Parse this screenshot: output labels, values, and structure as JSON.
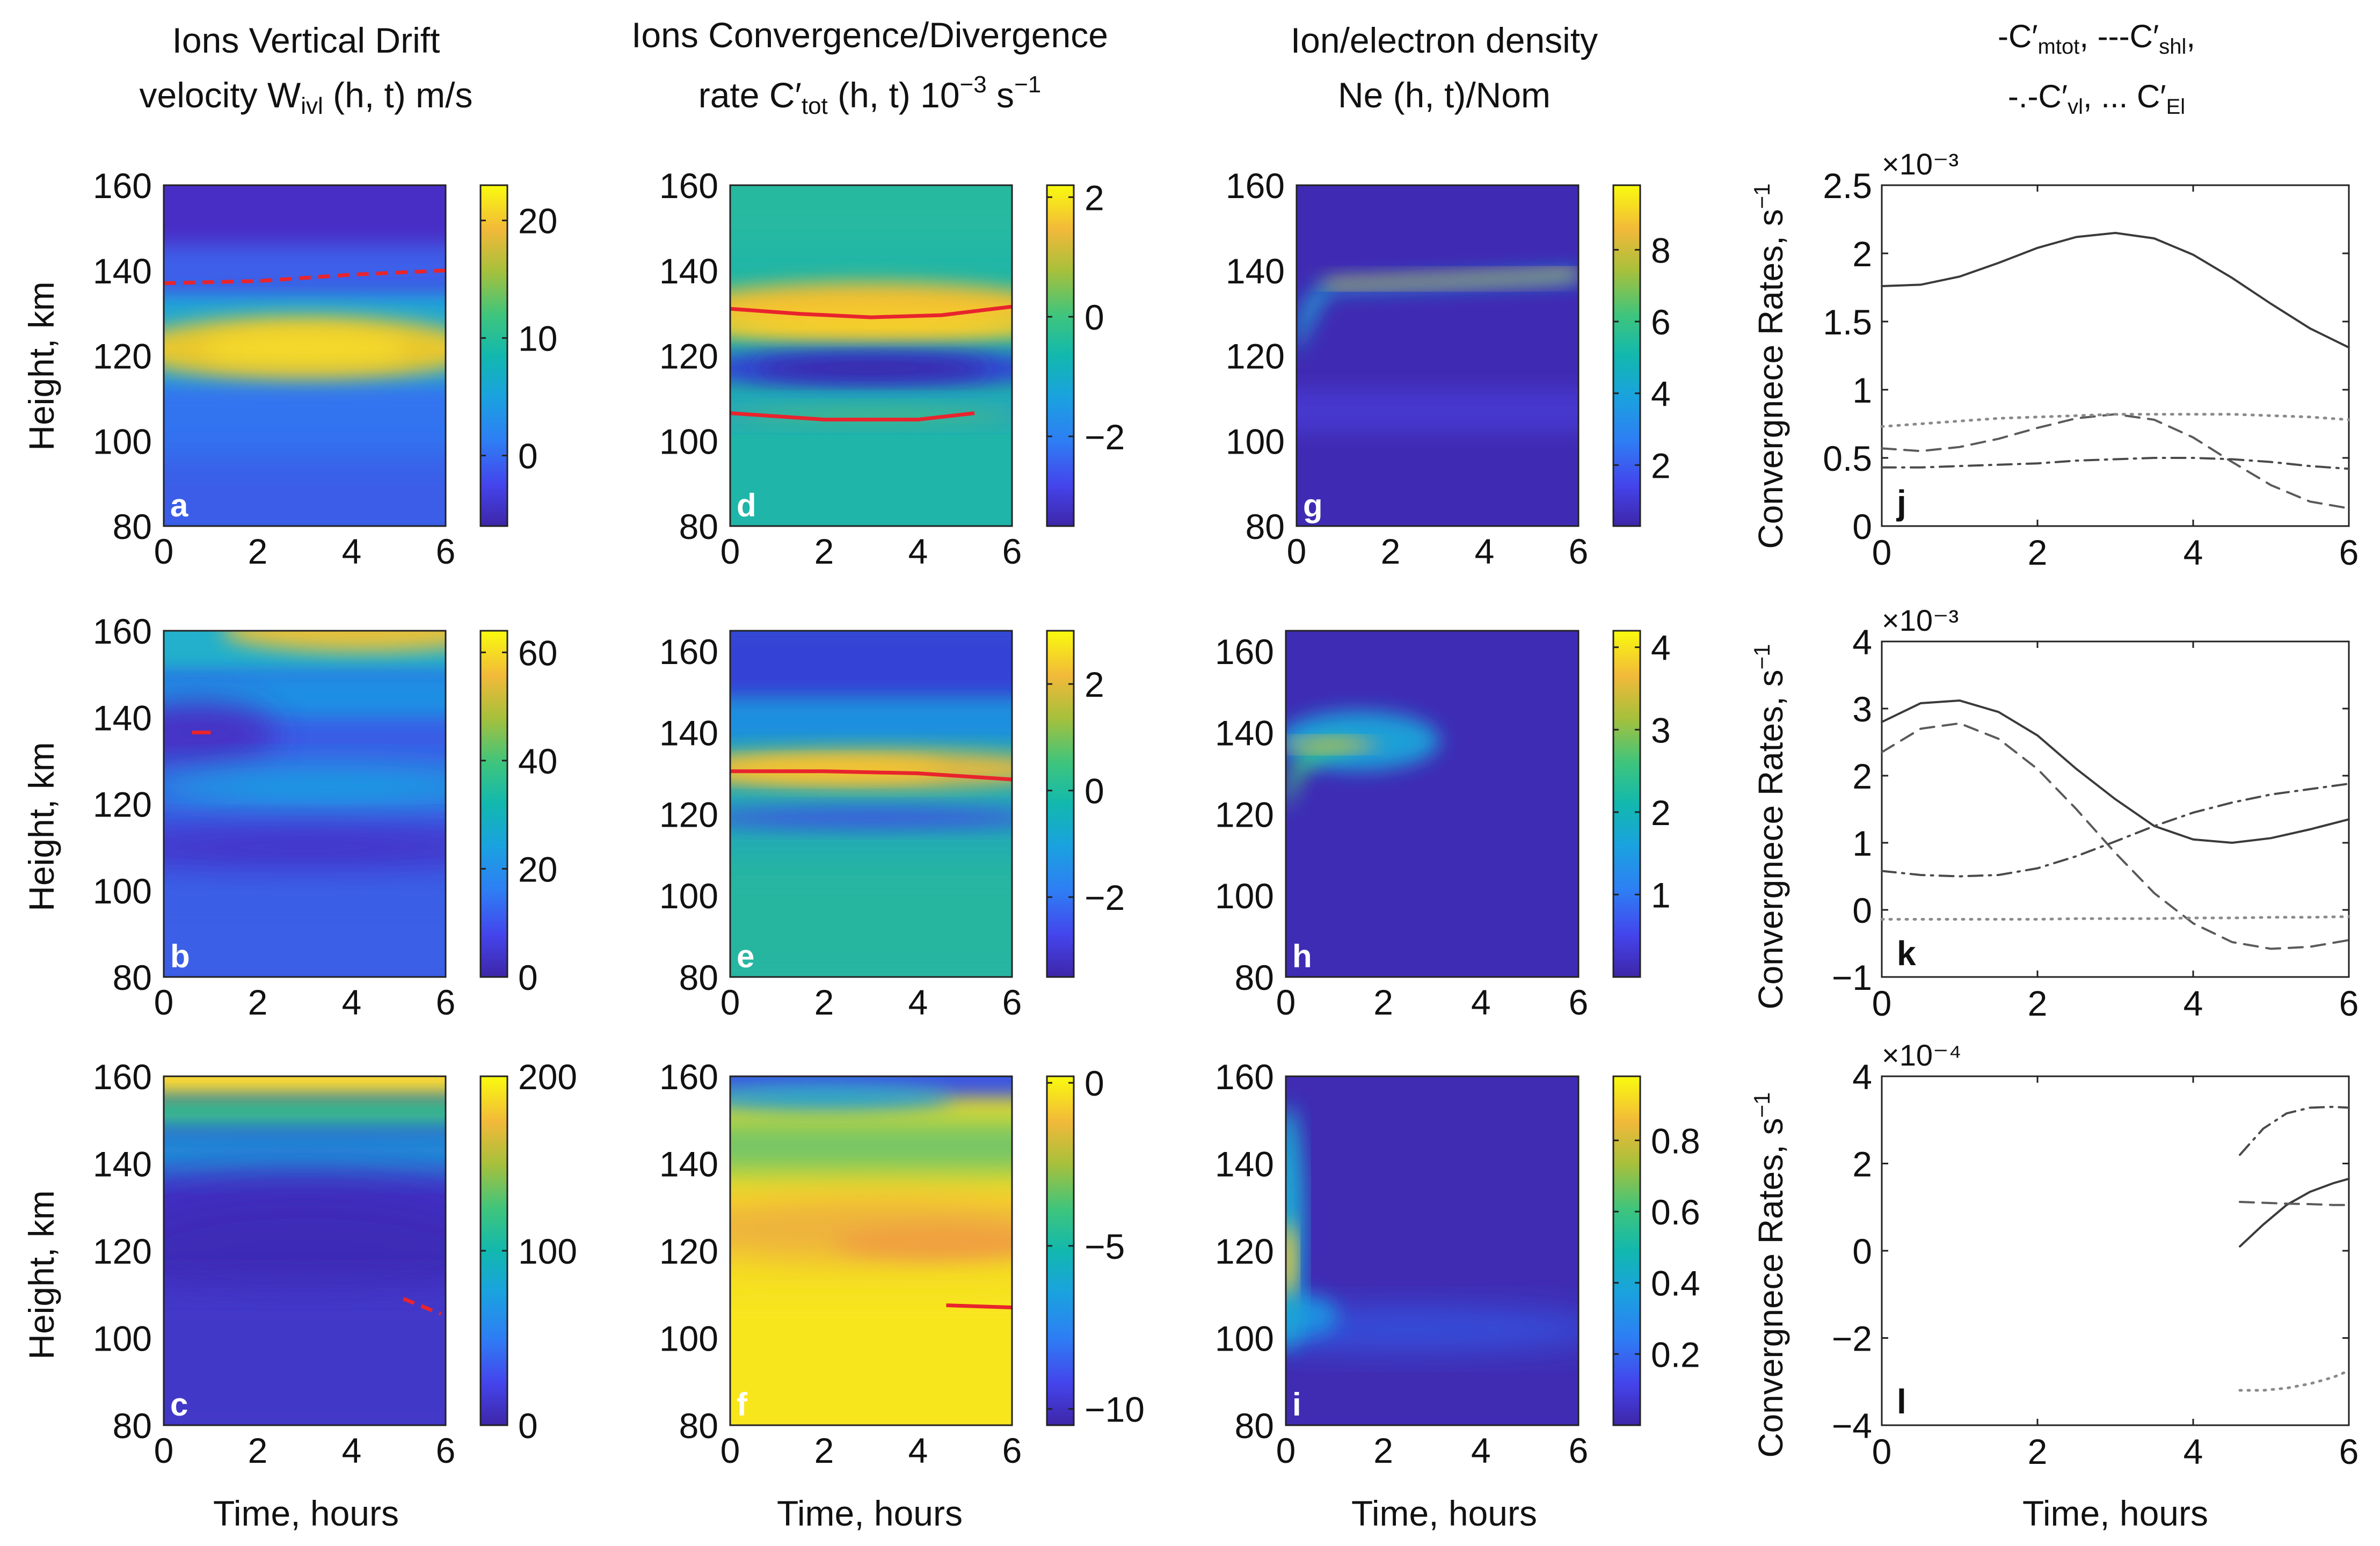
{
  "headers": {
    "col1": {
      "line1": "Ions Vertical Drift",
      "line2a": "velocity W",
      "line2sub": "ivl",
      "line2b": " (h, t) m/s"
    },
    "col2": {
      "line1": "Ions Convergence/Divergence",
      "line2a": "rate C′",
      "line2sub": "tot",
      "line2b": " (h, t) 10",
      "line2sup": "−3",
      "line2c": " s",
      "line2sup2": "−1"
    },
    "col3": {
      "line1": "Ion/electron density",
      "line2": "Ne (h, t)/Nom"
    },
    "col4": {
      "l1a": "-C′",
      "l1sub1": "mtot",
      "l1b": ", ---C′",
      "l1sub2": "shl",
      "l1c": ",",
      "l2a": "-.-C′",
      "l2sub1": "vl",
      "l2b": ", ... C′",
      "l2sub2": "El"
    }
  },
  "common": {
    "height_label": "Height, km",
    "time_label": "Time, hours",
    "rate_label": "Convergnece Rates, s",
    "rate_label_sup": "−1"
  },
  "colors": {
    "parula_low": "#3e26a8",
    "parula_mid": "#12b8ae",
    "parula_high": "#f9fb0e",
    "ridge": "#e8242d"
  },
  "chart_data": [
    {
      "id": "a",
      "type": "heatmap",
      "title": "Ions vertical drift velocity",
      "xlabel": "",
      "ylabel": "Height, km",
      "xlim": [
        0,
        6
      ],
      "ylim": [
        80,
        160
      ],
      "xticks": [
        0,
        2,
        4,
        6
      ],
      "yticks": [
        80,
        100,
        120,
        140,
        160
      ],
      "colorbar": {
        "min": -6,
        "max": 23,
        "ticks": [
          0,
          10,
          20
        ]
      },
      "panel_label": "a"
    },
    {
      "id": "b",
      "type": "heatmap",
      "title": "Ions vertical drift velocity",
      "xlabel": "",
      "ylabel": "Height, km",
      "xlim": [
        0,
        6
      ],
      "ylim": [
        80,
        160
      ],
      "xticks": [
        0,
        2,
        4,
        6
      ],
      "yticks": [
        80,
        100,
        120,
        140,
        160
      ],
      "colorbar": {
        "min": 0,
        "max": 64,
        "ticks": [
          0,
          20,
          40,
          60
        ]
      },
      "panel_label": "b"
    },
    {
      "id": "c",
      "type": "heatmap",
      "title": "Ions vertical drift velocity",
      "xlabel": "Time, hours",
      "ylabel": "Height, km",
      "xlim": [
        0,
        6
      ],
      "ylim": [
        80,
        160
      ],
      "xticks": [
        0,
        2,
        4,
        6
      ],
      "yticks": [
        80,
        100,
        120,
        140,
        160
      ],
      "colorbar": {
        "min": 0,
        "max": 200,
        "ticks": [
          0,
          100,
          200
        ]
      },
      "panel_label": "c"
    },
    {
      "id": "d",
      "type": "heatmap",
      "title": "Ions convergence/divergence rate",
      "xlabel": "",
      "ylabel": "",
      "xlim": [
        0,
        6
      ],
      "ylim": [
        80,
        160
      ],
      "xticks": [
        0,
        2,
        4,
        6
      ],
      "yticks": [
        80,
        100,
        120,
        140,
        160
      ],
      "colorbar": {
        "min": -3.5,
        "max": 2.2,
        "ticks": [
          -2,
          0,
          2
        ]
      },
      "panel_label": "d"
    },
    {
      "id": "e",
      "type": "heatmap",
      "title": "Ions convergence/divergence rate",
      "xlabel": "",
      "ylabel": "",
      "xlim": [
        0,
        6
      ],
      "ylim": [
        80,
        165
      ],
      "xticks": [
        0,
        2,
        4,
        6
      ],
      "yticks": [
        80,
        100,
        120,
        140,
        160
      ],
      "colorbar": {
        "min": -3.5,
        "max": 3,
        "ticks": [
          -2,
          0,
          2
        ]
      },
      "panel_label": "e"
    },
    {
      "id": "f",
      "type": "heatmap",
      "title": "Ions convergence/divergence rate",
      "xlabel": "Time, hours",
      "ylabel": "",
      "xlim": [
        0,
        6
      ],
      "ylim": [
        80,
        160
      ],
      "xticks": [
        0,
        2,
        4,
        6
      ],
      "yticks": [
        80,
        100,
        120,
        140,
        160
      ],
      "colorbar": {
        "min": -10.5,
        "max": 0.2,
        "ticks": [
          -10,
          -5,
          0
        ]
      },
      "panel_label": "f"
    },
    {
      "id": "g",
      "type": "heatmap",
      "title": "Ion/electron density",
      "xlabel": "",
      "ylabel": "",
      "xlim": [
        0,
        6
      ],
      "ylim": [
        80,
        160
      ],
      "xticks": [
        0,
        2,
        4,
        6
      ],
      "yticks": [
        80,
        100,
        120,
        140,
        160
      ],
      "colorbar": {
        "min": 0.3,
        "max": 9.8,
        "ticks": [
          2,
          4,
          6,
          8
        ]
      },
      "panel_label": "g"
    },
    {
      "id": "h",
      "type": "heatmap",
      "title": "Ion/electron density",
      "xlabel": "",
      "ylabel": "",
      "xlim": [
        0,
        6
      ],
      "ylim": [
        80,
        165
      ],
      "xticks": [
        0,
        2,
        4,
        6
      ],
      "yticks": [
        80,
        100,
        120,
        140,
        160
      ],
      "colorbar": {
        "min": 0,
        "max": 4.2,
        "ticks": [
          1,
          2,
          3,
          4
        ]
      },
      "panel_label": "h"
    },
    {
      "id": "i",
      "type": "heatmap",
      "title": "Ion/electron density",
      "xlabel": "Time, hours",
      "ylabel": "",
      "xlim": [
        0,
        6
      ],
      "ylim": [
        80,
        160
      ],
      "xticks": [
        0,
        2,
        4,
        6
      ],
      "yticks": [
        80,
        100,
        120,
        140,
        160
      ],
      "colorbar": {
        "min": 0,
        "max": 0.98,
        "ticks": [
          0.2,
          0.4,
          0.6,
          0.8
        ]
      },
      "panel_label": "i"
    },
    {
      "id": "j",
      "type": "line",
      "xlabel": "",
      "ylabel": "Convergnece Rates, s⁻¹",
      "xlim": [
        0,
        6
      ],
      "ylim": [
        0,
        2.5
      ],
      "exponent": "×10⁻³",
      "xticks": [
        0,
        2,
        4,
        6
      ],
      "yticks": [
        0,
        0.5,
        1,
        1.5,
        2,
        2.5
      ],
      "panel_label": "j",
      "series": [
        {
          "name": "C′mtot",
          "style": "solid",
          "x": [
            0,
            0.5,
            1,
            1.5,
            2,
            2.5,
            3,
            3.5,
            4,
            4.5,
            5,
            5.5,
            6
          ],
          "y": [
            1.76,
            1.77,
            1.83,
            1.93,
            2.04,
            2.12,
            2.15,
            2.11,
            1.99,
            1.82,
            1.63,
            1.45,
            1.31
          ]
        },
        {
          "name": "C′shl",
          "style": "dashed",
          "x": [
            0,
            0.5,
            1,
            1.5,
            2,
            2.5,
            3,
            3.5,
            4,
            4.5,
            5,
            5.5,
            6
          ],
          "y": [
            0.57,
            0.55,
            0.58,
            0.64,
            0.72,
            0.79,
            0.82,
            0.78,
            0.65,
            0.47,
            0.3,
            0.18,
            0.13
          ]
        },
        {
          "name": "C′vl",
          "style": "dashdot",
          "x": [
            0,
            0.5,
            1,
            1.5,
            2,
            2.5,
            3,
            3.5,
            4,
            4.5,
            5,
            5.5,
            6
          ],
          "y": [
            0.43,
            0.43,
            0.44,
            0.45,
            0.46,
            0.48,
            0.49,
            0.5,
            0.5,
            0.49,
            0.47,
            0.44,
            0.42
          ]
        },
        {
          "name": "C′El",
          "style": "dotted",
          "x": [
            0,
            0.5,
            1,
            1.5,
            2,
            2.5,
            3,
            3.5,
            4,
            4.5,
            5,
            5.5,
            6
          ],
          "y": [
            0.73,
            0.75,
            0.77,
            0.79,
            0.8,
            0.81,
            0.82,
            0.82,
            0.82,
            0.82,
            0.81,
            0.8,
            0.78
          ]
        }
      ]
    },
    {
      "id": "k",
      "type": "line",
      "xlabel": "",
      "ylabel": "Convergnece Rates, s⁻¹",
      "xlim": [
        0,
        6
      ],
      "ylim": [
        -1,
        4
      ],
      "exponent": "×10⁻³",
      "xticks": [
        0,
        2,
        4,
        6
      ],
      "yticks": [
        -1,
        0,
        1,
        2,
        3,
        4
      ],
      "panel_label": "k",
      "series": [
        {
          "name": "C′mtot",
          "style": "solid",
          "x": [
            0,
            0.5,
            1,
            1.5,
            2,
            2.5,
            3,
            3.5,
            4,
            4.5,
            5,
            5.5,
            6
          ],
          "y": [
            2.8,
            3.08,
            3.12,
            2.95,
            2.6,
            2.1,
            1.65,
            1.25,
            1.05,
            1.0,
            1.07,
            1.2,
            1.35
          ]
        },
        {
          "name": "C′shl",
          "style": "dashed",
          "x": [
            0,
            0.5,
            1,
            1.5,
            2,
            2.5,
            3,
            3.5,
            4,
            4.5,
            5,
            5.5,
            6
          ],
          "y": [
            2.35,
            2.7,
            2.78,
            2.55,
            2.1,
            1.5,
            0.85,
            0.25,
            -0.2,
            -0.48,
            -0.58,
            -0.55,
            -0.45
          ]
        },
        {
          "name": "C′vl",
          "style": "dashdot",
          "x": [
            0,
            0.5,
            1,
            1.5,
            2,
            2.5,
            3,
            3.5,
            4,
            4.5,
            5,
            5.5,
            6
          ],
          "y": [
            0.58,
            0.52,
            0.5,
            0.52,
            0.62,
            0.8,
            1.02,
            1.25,
            1.45,
            1.6,
            1.72,
            1.8,
            1.88
          ]
        },
        {
          "name": "C′El",
          "style": "dotted",
          "x": [
            0,
            0.5,
            1,
            1.5,
            2,
            2.5,
            3,
            3.5,
            4,
            4.5,
            5,
            5.5,
            6
          ],
          "y": [
            -0.14,
            -0.14,
            -0.14,
            -0.14,
            -0.14,
            -0.13,
            -0.13,
            -0.13,
            -0.12,
            -0.12,
            -0.11,
            -0.11,
            -0.1
          ]
        }
      ]
    },
    {
      "id": "l",
      "type": "line",
      "xlabel": "Time, hours",
      "ylabel": "Convergnece Rates, s⁻¹",
      "xlim": [
        0,
        6
      ],
      "ylim": [
        -4,
        4
      ],
      "exponent": "×10⁻⁴",
      "xticks": [
        0,
        2,
        4,
        6
      ],
      "yticks": [
        -4,
        -2,
        0,
        2,
        4
      ],
      "panel_label": "l",
      "series": [
        {
          "name": "C′mtot",
          "style": "solid",
          "x": [
            4.6,
            4.9,
            5.2,
            5.5,
            5.8,
            6.0
          ],
          "y": [
            0.1,
            0.6,
            1.05,
            1.35,
            1.55,
            1.65
          ]
        },
        {
          "name": "C′shl",
          "style": "dashed",
          "x": [
            4.6,
            4.9,
            5.2,
            5.5,
            5.8,
            6.0
          ],
          "y": [
            1.12,
            1.1,
            1.08,
            1.07,
            1.05,
            1.05
          ]
        },
        {
          "name": "C′vl",
          "style": "dashdot",
          "x": [
            4.6,
            4.9,
            5.2,
            5.5,
            5.8,
            6.0
          ],
          "y": [
            2.2,
            2.8,
            3.15,
            3.28,
            3.3,
            3.28
          ]
        },
        {
          "name": "C′El",
          "style": "dotted",
          "x": [
            4.6,
            4.9,
            5.2,
            5.5,
            5.8,
            6.0
          ],
          "y": [
            -3.2,
            -3.2,
            -3.15,
            -3.05,
            -2.9,
            -2.75
          ]
        }
      ]
    }
  ]
}
